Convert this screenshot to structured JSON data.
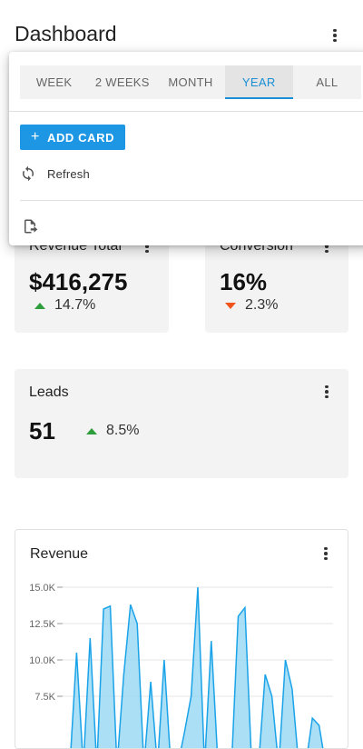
{
  "header": {
    "title": "Dashboard"
  },
  "cards": {
    "revenue_total": {
      "title": "Revenue Total",
      "value": "$416,275",
      "delta": "14.7%",
      "trend": "up"
    },
    "conversion": {
      "title": "Conversion",
      "value": "16%",
      "delta": "2.3%",
      "trend": "down"
    },
    "leads": {
      "title": "Leads",
      "value": "51",
      "delta": "8.5%",
      "trend": "up"
    }
  },
  "menu": {
    "tabs": [
      {
        "label": "WEEK",
        "selected": false
      },
      {
        "label": "2 WEEKS",
        "selected": false
      },
      {
        "label": "MONTH",
        "selected": false
      },
      {
        "label": "YEAR",
        "selected": true
      },
      {
        "label": "ALL",
        "selected": false
      }
    ],
    "add_card_label": "ADD CARD",
    "refresh_label": "Refresh",
    "export_icon": "export-icon"
  },
  "colors": {
    "accent": "#1d96e3",
    "up": "#2e9e3c",
    "down": "#f0531c",
    "area_fill": "#8fd4f2",
    "area_stroke": "#1aa3e8"
  },
  "revenue_chart": {
    "title": "Revenue",
    "chart_data": {
      "type": "area",
      "title": "Revenue",
      "ylim": [
        0,
        15000
      ],
      "yticks": [
        15000,
        12500,
        10000,
        7500
      ],
      "ytick_labels": [
        "15.0K",
        "12.5K",
        "10.0K",
        "7.5K"
      ],
      "grid": true,
      "series": [
        {
          "values": [
            0,
            10500,
            0,
            11500,
            0,
            13500,
            13700,
            0,
            9000,
            13800,
            12500,
            0,
            8500,
            0,
            10000,
            0,
            0,
            5000,
            7500,
            15000,
            0,
            11300,
            0,
            0,
            0,
            13000,
            13600,
            0,
            0,
            9000,
            7500,
            0,
            10000,
            8000,
            0,
            0,
            6000,
            5500,
            0
          ]
        }
      ]
    }
  }
}
